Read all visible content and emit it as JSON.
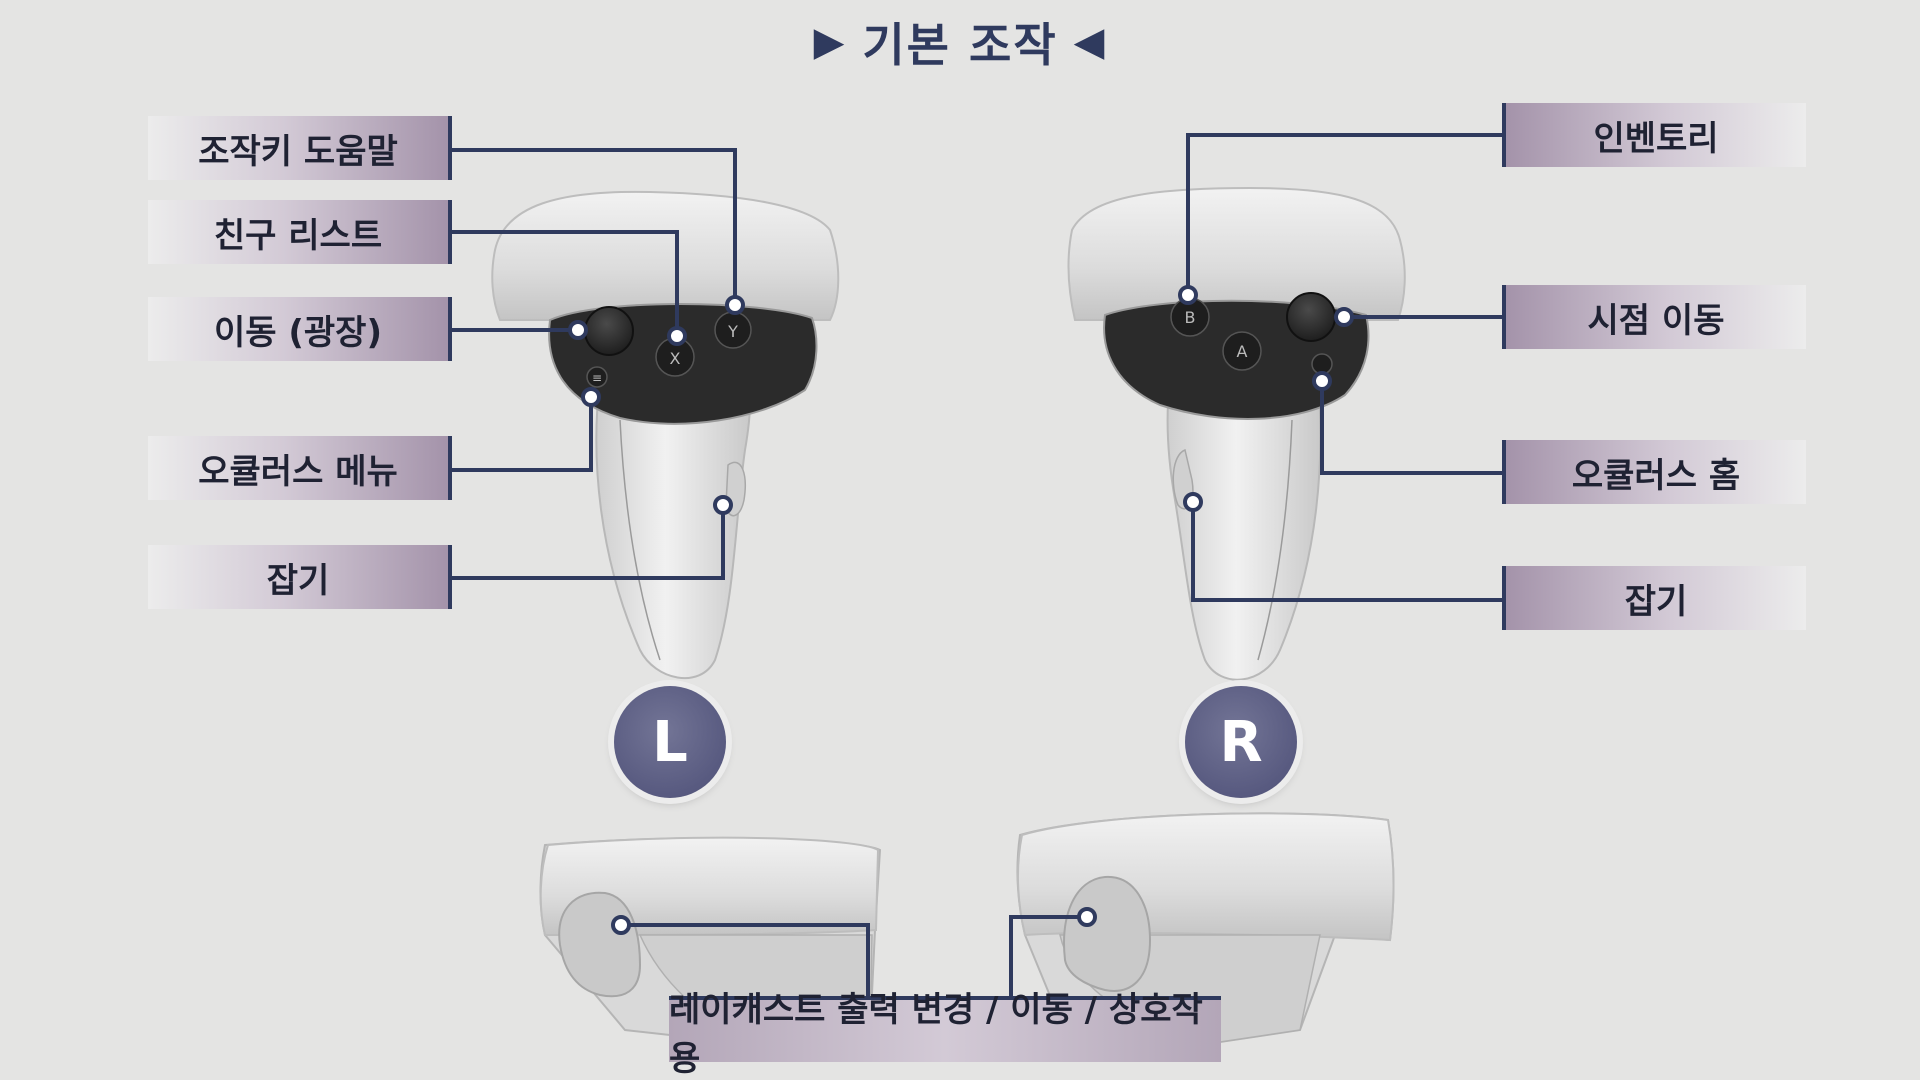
{
  "title": {
    "text": "기본 조작",
    "left_marker": "▶",
    "right_marker": "◀"
  },
  "left_controller": {
    "badge": "L",
    "labels": {
      "help": "조작키 도움말",
      "friends": "친구 리스트",
      "move": "이동 (광장)",
      "oculus_menu": "오큘러스 메뉴",
      "grab": "잡기"
    },
    "buttons": {
      "x": "X",
      "y": "Y",
      "menu": "≡"
    }
  },
  "right_controller": {
    "badge": "R",
    "labels": {
      "inventory": "인벤토리",
      "view": "시점 이동",
      "oculus_home": "오큘러스 홈",
      "grab": "잡기"
    },
    "buttons": {
      "a": "A",
      "b": "B"
    }
  },
  "bottom": {
    "label": "레이캐스트 출력 변경 / 이동 / 상호작용"
  },
  "colors": {
    "background": "#e4e4e3",
    "accent": "#2f3a5e",
    "badge": "#5f6187",
    "label_purple": "#a493aa"
  }
}
